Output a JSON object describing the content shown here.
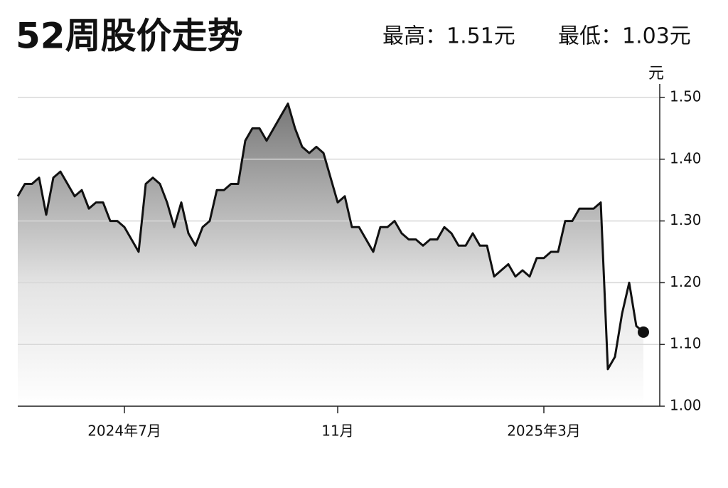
{
  "chart_data": {
    "type": "area-line",
    "title": "52周股价走势",
    "high_label": "最高：1.51元",
    "low_label": "最低：1.03元",
    "y_unit": "元",
    "categories": [
      null,
      null,
      null,
      null,
      null,
      null,
      null,
      null,
      null,
      null,
      null,
      null,
      null,
      null,
      null,
      "2024年7月",
      null,
      null,
      null,
      null,
      null,
      null,
      null,
      null,
      null,
      null,
      null,
      null,
      null,
      null,
      null,
      null,
      null,
      null,
      null,
      null,
      null,
      null,
      null,
      null,
      null,
      null,
      null,
      null,
      null,
      "11月",
      null,
      null,
      null,
      null,
      null,
      null,
      null,
      null,
      null,
      null,
      null,
      null,
      null,
      null,
      null,
      null,
      null,
      null,
      null,
      null,
      null,
      null,
      null,
      null,
      null,
      null,
      null,
      null,
      "2025年3月",
      null,
      null,
      null,
      null,
      null,
      null,
      null,
      null,
      null,
      null,
      null,
      null,
      null,
      null
    ],
    "values": [
      1.34,
      1.36,
      1.36,
      1.37,
      1.31,
      1.37,
      1.38,
      1.36,
      1.34,
      1.35,
      1.32,
      1.33,
      1.33,
      1.3,
      1.3,
      1.29,
      1.27,
      1.25,
      1.36,
      1.37,
      1.36,
      1.33,
      1.29,
      1.33,
      1.28,
      1.26,
      1.29,
      1.3,
      1.35,
      1.35,
      1.36,
      1.36,
      1.43,
      1.45,
      1.45,
      1.43,
      1.45,
      1.47,
      1.49,
      1.45,
      1.42,
      1.41,
      1.42,
      1.41,
      1.37,
      1.33,
      1.34,
      1.29,
      1.29,
      1.27,
      1.25,
      1.29,
      1.29,
      1.3,
      1.28,
      1.27,
      1.27,
      1.26,
      1.27,
      1.27,
      1.29,
      1.28,
      1.26,
      1.26,
      1.28,
      1.26,
      1.26,
      1.21,
      1.22,
      1.23,
      1.21,
      1.22,
      1.21,
      1.24,
      1.24,
      1.25,
      1.25,
      1.3,
      1.3,
      1.32,
      1.32,
      1.32,
      1.33,
      1.06,
      1.08,
      1.15,
      1.2,
      1.13,
      1.12
    ],
    "color": "#111111",
    "ylim": [
      1.0,
      1.5
    ],
    "yticks": [
      {
        "value": 1.0,
        "label": "1.00"
      },
      {
        "value": 1.1,
        "label": "1.10"
      },
      {
        "value": 1.2,
        "label": "1.20"
      },
      {
        "value": 1.3,
        "label": "1.30"
      },
      {
        "value": 1.4,
        "label": "1.40"
      },
      {
        "value": 1.5,
        "label": "1.50"
      }
    ],
    "grid": true
  }
}
